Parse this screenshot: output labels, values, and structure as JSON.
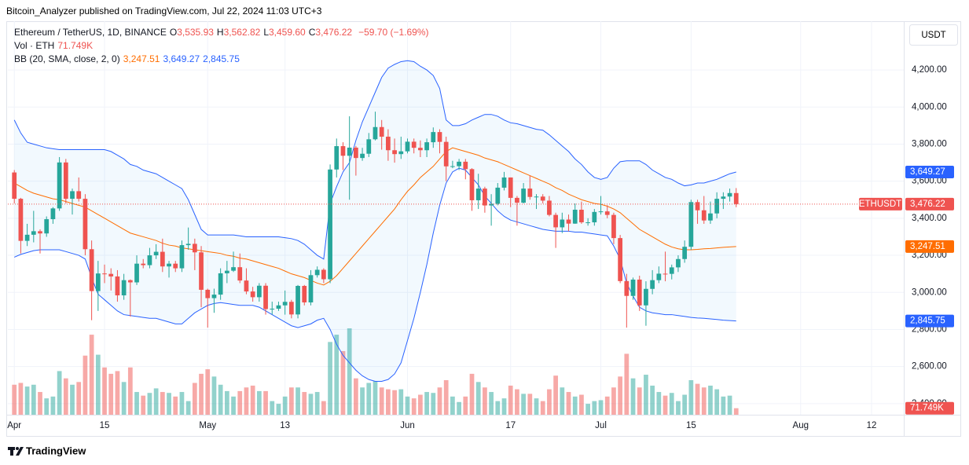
{
  "chart_data": {
    "type": "candlestick",
    "attribution": "Bitcoin_Analyzer published on TradingView.com, Jul 22, 2024 11:03 UTC+3",
    "symbol": "Ethereum / TetherUS, 1D, BINANCE",
    "ohlc_header": [
      {
        "key": "O",
        "value": "3,535.93"
      },
      {
        "key": "H",
        "value": "3,562.82"
      },
      {
        "key": "L",
        "value": "3,459.60"
      },
      {
        "key": "C",
        "value": "3,476.22"
      }
    ],
    "change": "−59.70 (−1.69%)",
    "currency": "USDT",
    "ticker_tag": "ETHUSDT",
    "close_label": "3,476.22",
    "brand": "TradingView",
    "up_color": "#26a69a",
    "down_color": "#ef5350",
    "grid": true,
    "x": [
      "04-01",
      "04-02",
      "04-03",
      "04-04",
      "04-05",
      "04-06",
      "04-07",
      "04-08",
      "04-09",
      "04-10",
      "04-11",
      "04-12",
      "04-13",
      "04-14",
      "04-15",
      "04-16",
      "04-17",
      "04-18",
      "04-19",
      "04-20",
      "04-21",
      "04-22",
      "04-23",
      "04-24",
      "04-25",
      "04-26",
      "04-27",
      "04-28",
      "04-29",
      "04-30",
      "05-01",
      "05-02",
      "05-03",
      "05-04",
      "05-05",
      "05-06",
      "05-07",
      "05-08",
      "05-09",
      "05-10",
      "05-11",
      "05-12",
      "05-13",
      "05-14",
      "05-15",
      "05-16",
      "05-17",
      "05-18",
      "05-19",
      "05-20",
      "05-21",
      "05-22",
      "05-23",
      "05-24",
      "05-25",
      "05-26",
      "05-27",
      "05-28",
      "05-29",
      "05-30",
      "05-31",
      "06-01",
      "06-02",
      "06-03",
      "06-04",
      "06-05",
      "06-06",
      "06-07",
      "06-08",
      "06-09",
      "06-10",
      "06-11",
      "06-12",
      "06-13",
      "06-14",
      "06-15",
      "06-16",
      "06-17",
      "06-18",
      "06-19",
      "06-20",
      "06-21",
      "06-22",
      "06-23",
      "06-24",
      "06-25",
      "06-26",
      "06-27",
      "06-28",
      "06-29",
      "06-30",
      "07-01",
      "07-02",
      "07-03",
      "07-04",
      "07-05",
      "07-06",
      "07-07",
      "07-08",
      "07-09",
      "07-10",
      "07-11",
      "07-12",
      "07-13",
      "07-14",
      "07-15",
      "07-16",
      "07-17",
      "07-18",
      "07-19",
      "07-20",
      "07-21",
      "07-22"
    ],
    "open": [
      3647,
      3505,
      3278,
      3311,
      3330,
      3318,
      3395,
      3453,
      3701,
      3505,
      3546,
      3505,
      3233,
      3007,
      3102,
      3100,
      3086,
      2984,
      3066,
      3054,
      3155,
      3147,
      3200,
      3219,
      3140,
      3155,
      3130,
      3255,
      3262,
      3216,
      3014,
      2969,
      2988,
      3103,
      3117,
      3136,
      3064,
      3005,
      2974,
      3036,
      2910,
      2912,
      2930,
      2949,
      2881,
      3035,
      2946,
      3093,
      3122,
      3071,
      3663,
      3789,
      3737,
      3781,
      3725,
      3748,
      3826,
      3892,
      3840,
      3767,
      3746,
      3761,
      3813,
      3780,
      3767,
      3810,
      3865,
      3812,
      3680,
      3681,
      3705,
      3665,
      3497,
      3560,
      3469,
      3478,
      3565,
      3620,
      3510,
      3484,
      3560,
      3515,
      3517,
      3495,
      3418,
      3351,
      3393,
      3371,
      3446,
      3378,
      3378,
      3434,
      3437,
      3418,
      3293,
      3061,
      2981,
      3069,
      2930,
      3019,
      3066,
      3101,
      3100,
      3135,
      3180,
      3246,
      3487,
      3443,
      3388,
      3426,
      3505,
      3517,
      3535.93
    ],
    "high": [
      3660,
      3510,
      3370,
      3440,
      3340,
      3410,
      3460,
      3730,
      3720,
      3560,
      3620,
      3530,
      3280,
      3170,
      3150,
      3130,
      3120,
      3100,
      3070,
      3200,
      3180,
      3240,
      3260,
      3290,
      3170,
      3170,
      3280,
      3350,
      3290,
      3250,
      3020,
      3020,
      3130,
      3170,
      3220,
      3210,
      3130,
      3030,
      3050,
      3050,
      2950,
      2950,
      3010,
      2960,
      3040,
      3040,
      3120,
      3140,
      3130,
      3690,
      3830,
      3810,
      3950,
      3790,
      3780,
      3860,
      3975,
      3930,
      3880,
      3830,
      3840,
      3830,
      3830,
      3820,
      3830,
      3890,
      3880,
      3840,
      3710,
      3720,
      3720,
      3670,
      3640,
      3570,
      3530,
      3590,
      3650,
      3620,
      3520,
      3590,
      3630,
      3530,
      3530,
      3520,
      3430,
      3430,
      3420,
      3480,
      3490,
      3400,
      3450,
      3520,
      3470,
      3430,
      3310,
      3100,
      3080,
      3090,
      3060,
      3120,
      3140,
      3220,
      3150,
      3200,
      3280,
      3500,
      3500,
      3520,
      3490,
      3540,
      3540,
      3560,
      3562.82
    ],
    "low": [
      3480,
      3210,
      3250,
      3270,
      3210,
      3300,
      3370,
      3440,
      3480,
      3420,
      3490,
      3200,
      2850,
      2900,
      3050,
      3010,
      2950,
      2960,
      2870,
      3040,
      3130,
      3130,
      3180,
      3110,
      3080,
      3110,
      3110,
      3230,
      3120,
      2920,
      2810,
      2890,
      2960,
      3050,
      3110,
      3050,
      2990,
      2950,
      2950,
      2880,
      2880,
      2900,
      2880,
      2860,
      2860,
      2930,
      2930,
      3080,
      3050,
      3050,
      3620,
      3660,
      3500,
      3630,
      3710,
      3730,
      3820,
      3770,
      3710,
      3700,
      3720,
      3750,
      3750,
      3730,
      3730,
      3780,
      3750,
      3600,
      3670,
      3660,
      3610,
      3440,
      3450,
      3430,
      3360,
      3470,
      3550,
      3460,
      3360,
      3480,
      3500,
      3450,
      3480,
      3410,
      3240,
      3320,
      3330,
      3370,
      3370,
      3360,
      3360,
      3420,
      3400,
      3260,
      3050,
      2810,
      2960,
      2900,
      2820,
      2990,
      3050,
      3060,
      3070,
      3110,
      3160,
      3230,
      3370,
      3370,
      3370,
      3400,
      3450,
      3490,
      3459.6
    ],
    "close": [
      3505,
      3278,
      3311,
      3330,
      3318,
      3395,
      3453,
      3701,
      3505,
      3546,
      3505,
      3233,
      3007,
      3102,
      3100,
      3086,
      2984,
      3066,
      3054,
      3155,
      3147,
      3200,
      3219,
      3140,
      3155,
      3130,
      3255,
      3262,
      3216,
      3014,
      2969,
      2988,
      3103,
      3117,
      3136,
      3064,
      3005,
      2974,
      3036,
      2910,
      2912,
      2930,
      2949,
      2881,
      3035,
      2946,
      3093,
      3122,
      3071,
      3663,
      3789,
      3737,
      3781,
      3725,
      3748,
      3826,
      3892,
      3840,
      3767,
      3746,
      3761,
      3813,
      3780,
      3767,
      3810,
      3865,
      3812,
      3680,
      3681,
      3705,
      3665,
      3497,
      3560,
      3469,
      3478,
      3565,
      3620,
      3510,
      3484,
      3560,
      3515,
      3517,
      3495,
      3418,
      3351,
      3393,
      3371,
      3446,
      3378,
      3378,
      3434,
      3437,
      3418,
      3293,
      3061,
      2981,
      3069,
      2930,
      3019,
      3066,
      3101,
      3100,
      3135,
      3180,
      3246,
      3487,
      3443,
      3388,
      3426,
      3505,
      3517,
      3535.93,
      3476.22
    ],
    "volume": {
      "label": "Vol · ETH",
      "value_label": "71.749K",
      "color": "#ef5350",
      "values": [
        330,
        350,
        310,
        330,
        250,
        180,
        200,
        480,
        400,
        330,
        360,
        650,
        880,
        660,
        520,
        450,
        480,
        360,
        520,
        250,
        210,
        240,
        290,
        250,
        240,
        200,
        250,
        150,
        350,
        450,
        500,
        420,
        330,
        260,
        200,
        260,
        300,
        320,
        260,
        260,
        150,
        120,
        200,
        300,
        300,
        250,
        230,
        250,
        150,
        800,
        880,
        700,
        950,
        400,
        300,
        350,
        370,
        300,
        280,
        270,
        280,
        200,
        180,
        220,
        250,
        240,
        300,
        380,
        200,
        140,
        200,
        450,
        360,
        300,
        250,
        150,
        180,
        320,
        280,
        230,
        230,
        180,
        150,
        280,
        430,
        300,
        250,
        200,
        220,
        120,
        150,
        160,
        200,
        300,
        420,
        670,
        400,
        300,
        440,
        320,
        250,
        210,
        240,
        150,
        220,
        380,
        340,
        300,
        320,
        280,
        200,
        210,
        71.749
      ]
    },
    "bb": {
      "label": "BB (20, SMA, close, 2, 0)",
      "fill": "rgba(33,150,243,0.06)",
      "middle": {
        "color": "#ff6d00",
        "value_label": "3,247.51",
        "values": [
          3590,
          3570,
          3550,
          3535,
          3525,
          3515,
          3505,
          3500,
          3490,
          3480,
          3470,
          3460,
          3440,
          3420,
          3400,
          3380,
          3360,
          3340,
          3320,
          3310,
          3300,
          3290,
          3280,
          3265,
          3255,
          3250,
          3240,
          3235,
          3230,
          3225,
          3220,
          3215,
          3210,
          3200,
          3195,
          3185,
          3180,
          3170,
          3160,
          3150,
          3140,
          3130,
          3115,
          3100,
          3090,
          3080,
          3065,
          3050,
          3040,
          3060,
          3090,
          3130,
          3170,
          3210,
          3250,
          3290,
          3330,
          3370,
          3410,
          3450,
          3500,
          3545,
          3580,
          3620,
          3650,
          3680,
          3720,
          3760,
          3780,
          3770,
          3760,
          3750,
          3740,
          3725,
          3715,
          3705,
          3690,
          3675,
          3660,
          3645,
          3630,
          3615,
          3600,
          3585,
          3565,
          3550,
          3530,
          3515,
          3500,
          3490,
          3480,
          3475,
          3465,
          3450,
          3430,
          3400,
          3370,
          3340,
          3320,
          3300,
          3280,
          3260,
          3245,
          3235,
          3230,
          3230,
          3232,
          3235,
          3237,
          3240,
          3243,
          3245,
          3247.51
        ]
      },
      "upper": {
        "color": "#2962ff",
        "value_label": "3,649.27",
        "values": [
          3930,
          3860,
          3810,
          3800,
          3790,
          3780,
          3775,
          3770,
          3770,
          3770,
          3770,
          3770,
          3770,
          3770,
          3770,
          3760,
          3740,
          3720,
          3690,
          3680,
          3660,
          3650,
          3640,
          3620,
          3600,
          3580,
          3560,
          3500,
          3420,
          3340,
          3310,
          3310,
          3310,
          3310,
          3310,
          3305,
          3300,
          3300,
          3300,
          3300,
          3300,
          3300,
          3295,
          3290,
          3280,
          3260,
          3230,
          3200,
          3180,
          3480,
          3570,
          3650,
          3700,
          3820,
          3920,
          4000,
          4080,
          4160,
          4210,
          4230,
          4245,
          4250,
          4245,
          4220,
          4200,
          4170,
          4100,
          3930,
          3900,
          3900,
          3910,
          3930,
          3945,
          3960,
          3960,
          3950,
          3930,
          3915,
          3910,
          3900,
          3890,
          3880,
          3875,
          3850,
          3820,
          3790,
          3760,
          3720,
          3690,
          3650,
          3620,
          3610,
          3620,
          3670,
          3705,
          3710,
          3710,
          3710,
          3690,
          3660,
          3640,
          3620,
          3610,
          3590,
          3575,
          3580,
          3590,
          3590,
          3600,
          3610,
          3625,
          3640,
          3649.27
        ]
      },
      "lower": {
        "color": "#2962ff",
        "value_label": "2,845.75",
        "values": [
          3190,
          3205,
          3215,
          3225,
          3230,
          3230,
          3230,
          3230,
          3220,
          3210,
          3200,
          3180,
          3080,
          2990,
          2960,
          2930,
          2900,
          2880,
          2875,
          2870,
          2865,
          2860,
          2860,
          2850,
          2840,
          2830,
          2830,
          2860,
          2890,
          2910,
          2930,
          2940,
          2945,
          2940,
          2935,
          2930,
          2930,
          2930,
          2920,
          2900,
          2880,
          2860,
          2840,
          2820,
          2810,
          2820,
          2830,
          2850,
          2860,
          2800,
          2720,
          2660,
          2620,
          2580,
          2550,
          2530,
          2520,
          2520,
          2530,
          2560,
          2620,
          2740,
          2860,
          3000,
          3150,
          3320,
          3470,
          3590,
          3650,
          3670,
          3660,
          3620,
          3580,
          3520,
          3480,
          3440,
          3410,
          3390,
          3380,
          3370,
          3360,
          3350,
          3340,
          3335,
          3330,
          3330,
          3330,
          3325,
          3325,
          3320,
          3315,
          3310,
          3305,
          3250,
          3180,
          3050,
          2980,
          2920,
          2900,
          2890,
          2885,
          2880,
          2880,
          2875,
          2870,
          2865,
          2862,
          2860,
          2857,
          2854,
          2850,
          2848,
          2845.75
        ]
      }
    },
    "ylim": [
      2340,
      4463
    ],
    "yticks": [
      {
        "value": 2400,
        "label": "2,400.00"
      },
      {
        "value": 2600,
        "label": "2,600.00"
      },
      {
        "value": 2800,
        "label": "2,800.00"
      },
      {
        "value": 3000,
        "label": "3,000.00"
      },
      {
        "value": 3200,
        "label": "3,200.00"
      },
      {
        "value": 3400,
        "label": "3,400.00"
      },
      {
        "value": 3600,
        "label": "3,600.00"
      },
      {
        "value": 3800,
        "label": "3,800.00"
      },
      {
        "value": 4000,
        "label": "4,000.00"
      },
      {
        "value": 4200,
        "label": "4,200.00"
      }
    ],
    "xlim": [
      "03-31",
      "08-17"
    ],
    "xticks": [
      {
        "value": "04-01",
        "label": "Apr"
      },
      {
        "value": "04-15",
        "label": "15"
      },
      {
        "value": "05-01",
        "label": "May"
      },
      {
        "value": "05-13",
        "label": "13"
      },
      {
        "value": "06-01",
        "label": "Jun"
      },
      {
        "value": "06-17",
        "label": "17"
      },
      {
        "value": "07-01",
        "label": "Jul"
      },
      {
        "value": "07-15",
        "label": "15"
      },
      {
        "value": "08-01",
        "label": "Aug"
      },
      {
        "value": "08-12",
        "label": "12"
      }
    ]
  }
}
